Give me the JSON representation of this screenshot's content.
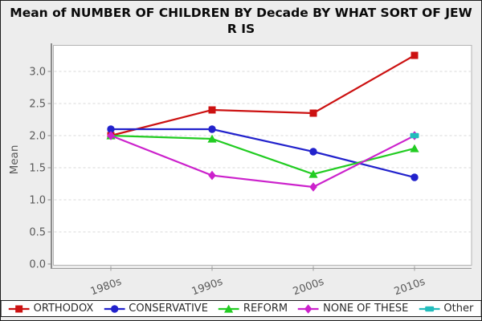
{
  "window": {
    "background": "#ededed",
    "border_color": "#1c1c1c"
  },
  "title_lines": [
    "Mean of NUMBER OF CHILDREN BY Decade BY WHAT SORT OF JEW",
    "R IS"
  ],
  "chart_data": {
    "type": "line",
    "title": "Mean of NUMBER OF CHILDREN BY Decade BY WHAT SORT OF JEW R IS",
    "ylabel": "Mean",
    "xlabel": "",
    "categories": [
      "1980s",
      "1990s",
      "2000s",
      "2010s"
    ],
    "series": [
      {
        "name": "ORTHODOX",
        "marker": "square",
        "color": "#cc1111",
        "values": [
          2.0,
          2.4,
          2.35,
          3.25
        ]
      },
      {
        "name": "CONSERVATIVE",
        "marker": "circle",
        "color": "#2222cc",
        "values": [
          2.1,
          2.1,
          1.75,
          1.35
        ]
      },
      {
        "name": "REFORM",
        "marker": "triangle",
        "color": "#22cc22",
        "values": [
          2.0,
          1.95,
          1.4,
          1.8
        ]
      },
      {
        "name": "NONE OF THESE",
        "marker": "diamond",
        "color": "#cc22cc",
        "values": [
          2.0,
          1.38,
          1.2,
          2.0
        ]
      },
      {
        "name": "Other",
        "marker": "hrect",
        "color": "#22bcbc",
        "values": [
          null,
          null,
          null,
          2.0
        ]
      }
    ],
    "yticks": [
      0.0,
      0.5,
      1.0,
      1.5,
      2.0,
      2.5,
      3.0
    ],
    "ytick_labels": [
      "0.0",
      "0.5",
      "1.0",
      "1.5",
      "2.0",
      "2.5",
      "3.0"
    ],
    "ylim": [
      0.0,
      3.4
    ],
    "grid": true,
    "grid_style": "dashed",
    "legend_position": "bottom"
  },
  "colors": {
    "axis_text": "#595959",
    "gridline": "#d8d8d8",
    "plot_border": "#b3b3b3",
    "axis_line": "#8c8c8c"
  }
}
